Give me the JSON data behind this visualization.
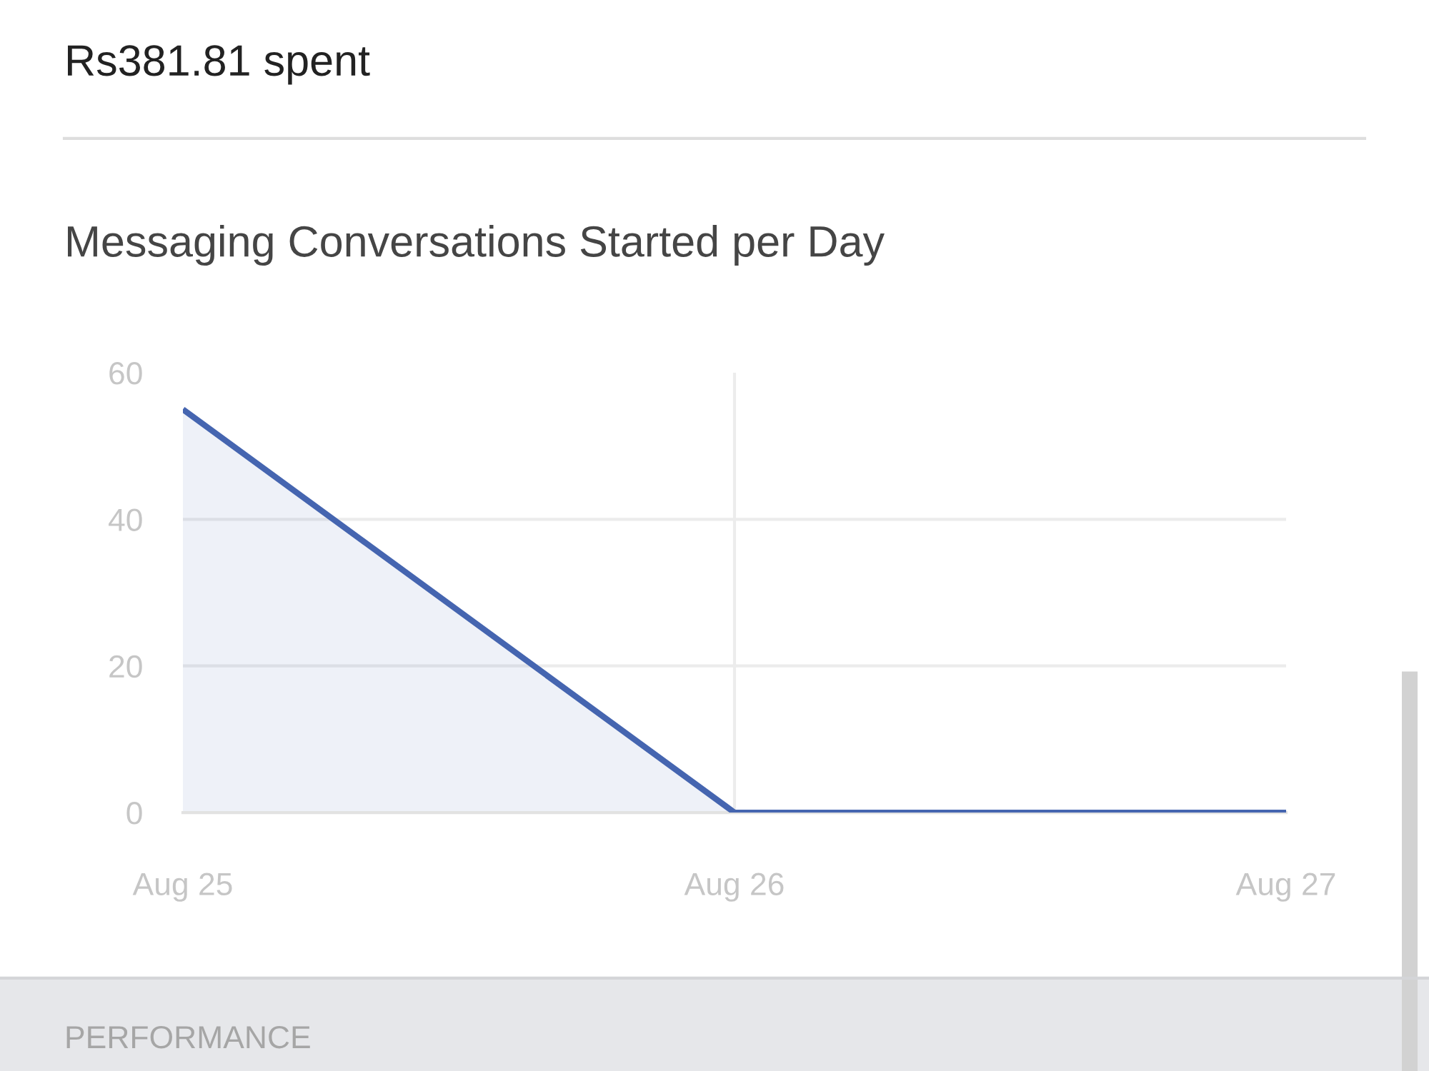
{
  "chart_data": {
    "type": "area",
    "title": "Messaging Conversations Started per Day",
    "categories": [
      "Aug 25",
      "Aug 26",
      "Aug 27"
    ],
    "series": [
      {
        "color": "#4565b0",
        "values": [
          55,
          0,
          0
        ]
      }
    ],
    "ylim": [
      0,
      60
    ],
    "yticks": [
      0,
      20,
      40,
      60
    ],
    "grid": true,
    "annotations": [
      "Rs381.81 spent",
      "PERFORMANCE"
    ]
  }
}
